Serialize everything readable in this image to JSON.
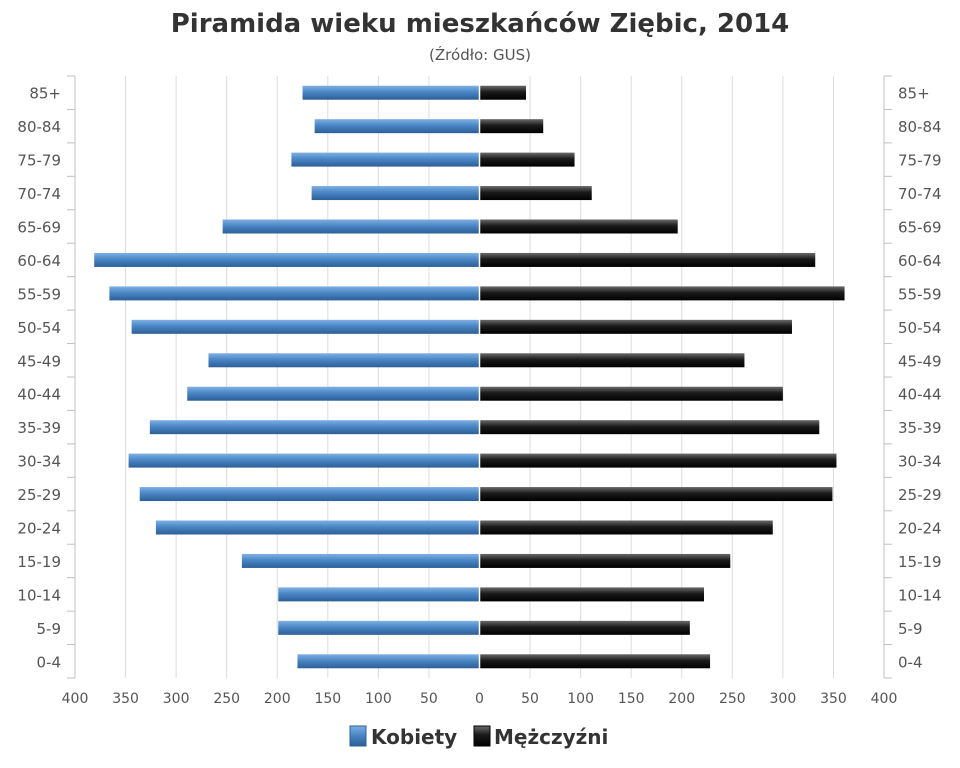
{
  "chart_data": {
    "type": "bar",
    "orientation": "horizontal",
    "layout": "population-pyramid",
    "title": "Piramida wieku mieszkańców Ziębic, 2014",
    "subtitle": "(Źródło: GUS)",
    "categories": [
      "85+",
      "80-84",
      "75-79",
      "70-74",
      "65-69",
      "60-64",
      "55-59",
      "50-54",
      "45-49",
      "40-44",
      "35-39",
      "30-34",
      "25-29",
      "20-24",
      "15-19",
      "10-14",
      "5-9",
      "0-4"
    ],
    "series": [
      {
        "name": "Kobiety",
        "side": "left",
        "color": "#4a86c5",
        "values": [
          175,
          163,
          186,
          166,
          254,
          381,
          366,
          344,
          268,
          289,
          326,
          347,
          336,
          320,
          235,
          199,
          199,
          180
        ]
      },
      {
        "name": "Mężczyźni",
        "side": "right",
        "color": "#1a1a1a",
        "values": [
          46,
          63,
          94,
          111,
          196,
          332,
          361,
          309,
          262,
          300,
          336,
          353,
          349,
          290,
          248,
          222,
          208,
          228
        ]
      }
    ],
    "x_ticks": [
      "400",
      "350",
      "300",
      "250",
      "200",
      "150",
      "100",
      "50",
      "0",
      "50",
      "100",
      "150",
      "200",
      "250",
      "300",
      "350",
      "400"
    ],
    "xlim": [
      -400,
      400
    ],
    "grid": true,
    "legend_position": "bottom-center"
  }
}
